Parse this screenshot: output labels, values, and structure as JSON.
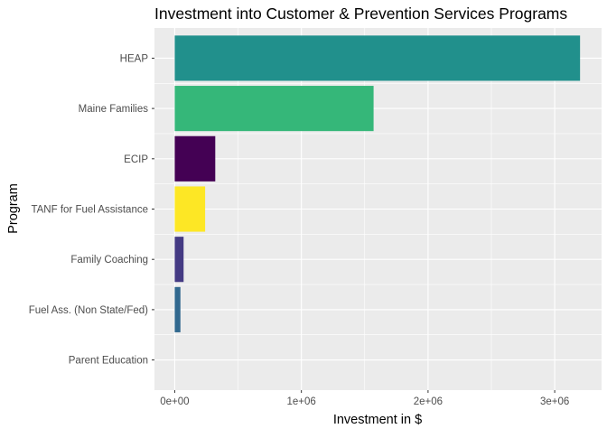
{
  "chart_data": {
    "type": "bar",
    "orientation": "horizontal",
    "title": "Investment into Customer & Prevention Services Programs",
    "xlabel": "Investment in $",
    "ylabel": "Program",
    "categories": [
      "HEAP",
      "Maine Families",
      "ECIP",
      "TANF for Fuel Assistance",
      "Family Coaching",
      "Fuel Ass. (Non State/Fed)",
      "Parent Education"
    ],
    "values": [
      3200000,
      1570000,
      320000,
      240000,
      70000,
      45000,
      0
    ],
    "colors": [
      "#21908C",
      "#35B779",
      "#440154",
      "#FDE725",
      "#443A83",
      "#31688E",
      "#8FD744"
    ],
    "xlim": [
      -160000,
      3370000
    ],
    "xticks": [
      0,
      1000000,
      2000000,
      3000000
    ],
    "xtick_labels": [
      "0e+00",
      "1e+06",
      "2e+06",
      "3e+06"
    ],
    "grid": true,
    "legend": "none",
    "panel_background": "#EBEBEB",
    "grid_color": "#FFFFFF"
  }
}
